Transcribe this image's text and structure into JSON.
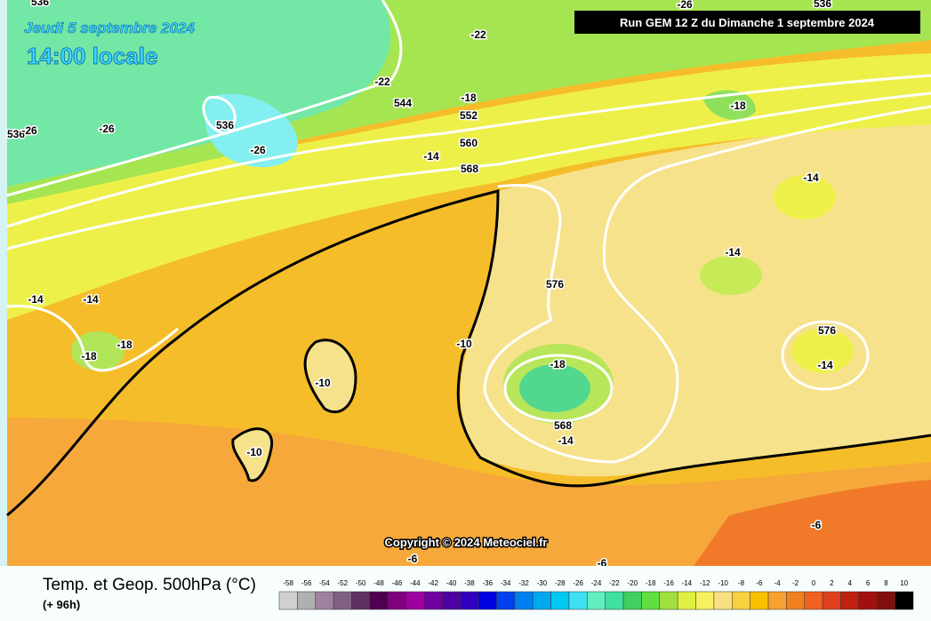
{
  "header": {
    "date": "Jeudi 5 septembre 2024",
    "time": "14:00 locale",
    "run": "Run GEM 12 Z du Dimanche 1 septembre 2024"
  },
  "map": {
    "labels": [
      "536",
      "-26",
      "536",
      "-22",
      "-22",
      "544",
      "-18",
      "552",
      "-18",
      "536",
      "-26",
      "536",
      "-26",
      "-26",
      "560",
      "-14",
      "568",
      "-14",
      "-14",
      "576",
      "-14",
      "-14",
      "-18",
      "-18",
      "-10",
      "576",
      "-14",
      "-18",
      "-10",
      "568",
      "-14",
      "-10",
      "-6",
      "-6",
      "-6"
    ],
    "copyright": "Copyright © 2024 Meteociel.fr"
  },
  "footer": {
    "title": "Temp. et Geop. 500hPa (°C)",
    "lead": "(+ 96h)"
  },
  "legend": {
    "values": [
      -58,
      -56,
      -54,
      -52,
      -50,
      -48,
      -46,
      -44,
      -42,
      -40,
      -38,
      -36,
      -34,
      -32,
      -30,
      -28,
      -26,
      -24,
      -22,
      -20,
      -18,
      -16,
      -14,
      -12,
      -10,
      -8,
      -6,
      -4,
      -2,
      0,
      2,
      4,
      6,
      8,
      10
    ],
    "colors": [
      "#d0d0d0",
      "#b0b0b0",
      "#a080a0",
      "#806080",
      "#603060",
      "#500050",
      "#800080",
      "#a000a0",
      "#7000a0",
      "#5000a0",
      "#3000c0",
      "#0000e0",
      "#0040f0",
      "#0080f0",
      "#00a8f0",
      "#00c8f0",
      "#40e0f0",
      "#60f0c0",
      "#40e0a0",
      "#40d060",
      "#60e040",
      "#a0e040",
      "#e0f040",
      "#f8f060",
      "#f8e080",
      "#f8d040",
      "#f8c000",
      "#f8a030",
      "#f08020",
      "#f06020",
      "#e04020",
      "#c02010",
      "#a01010",
      "#801010",
      "#000000"
    ]
  }
}
